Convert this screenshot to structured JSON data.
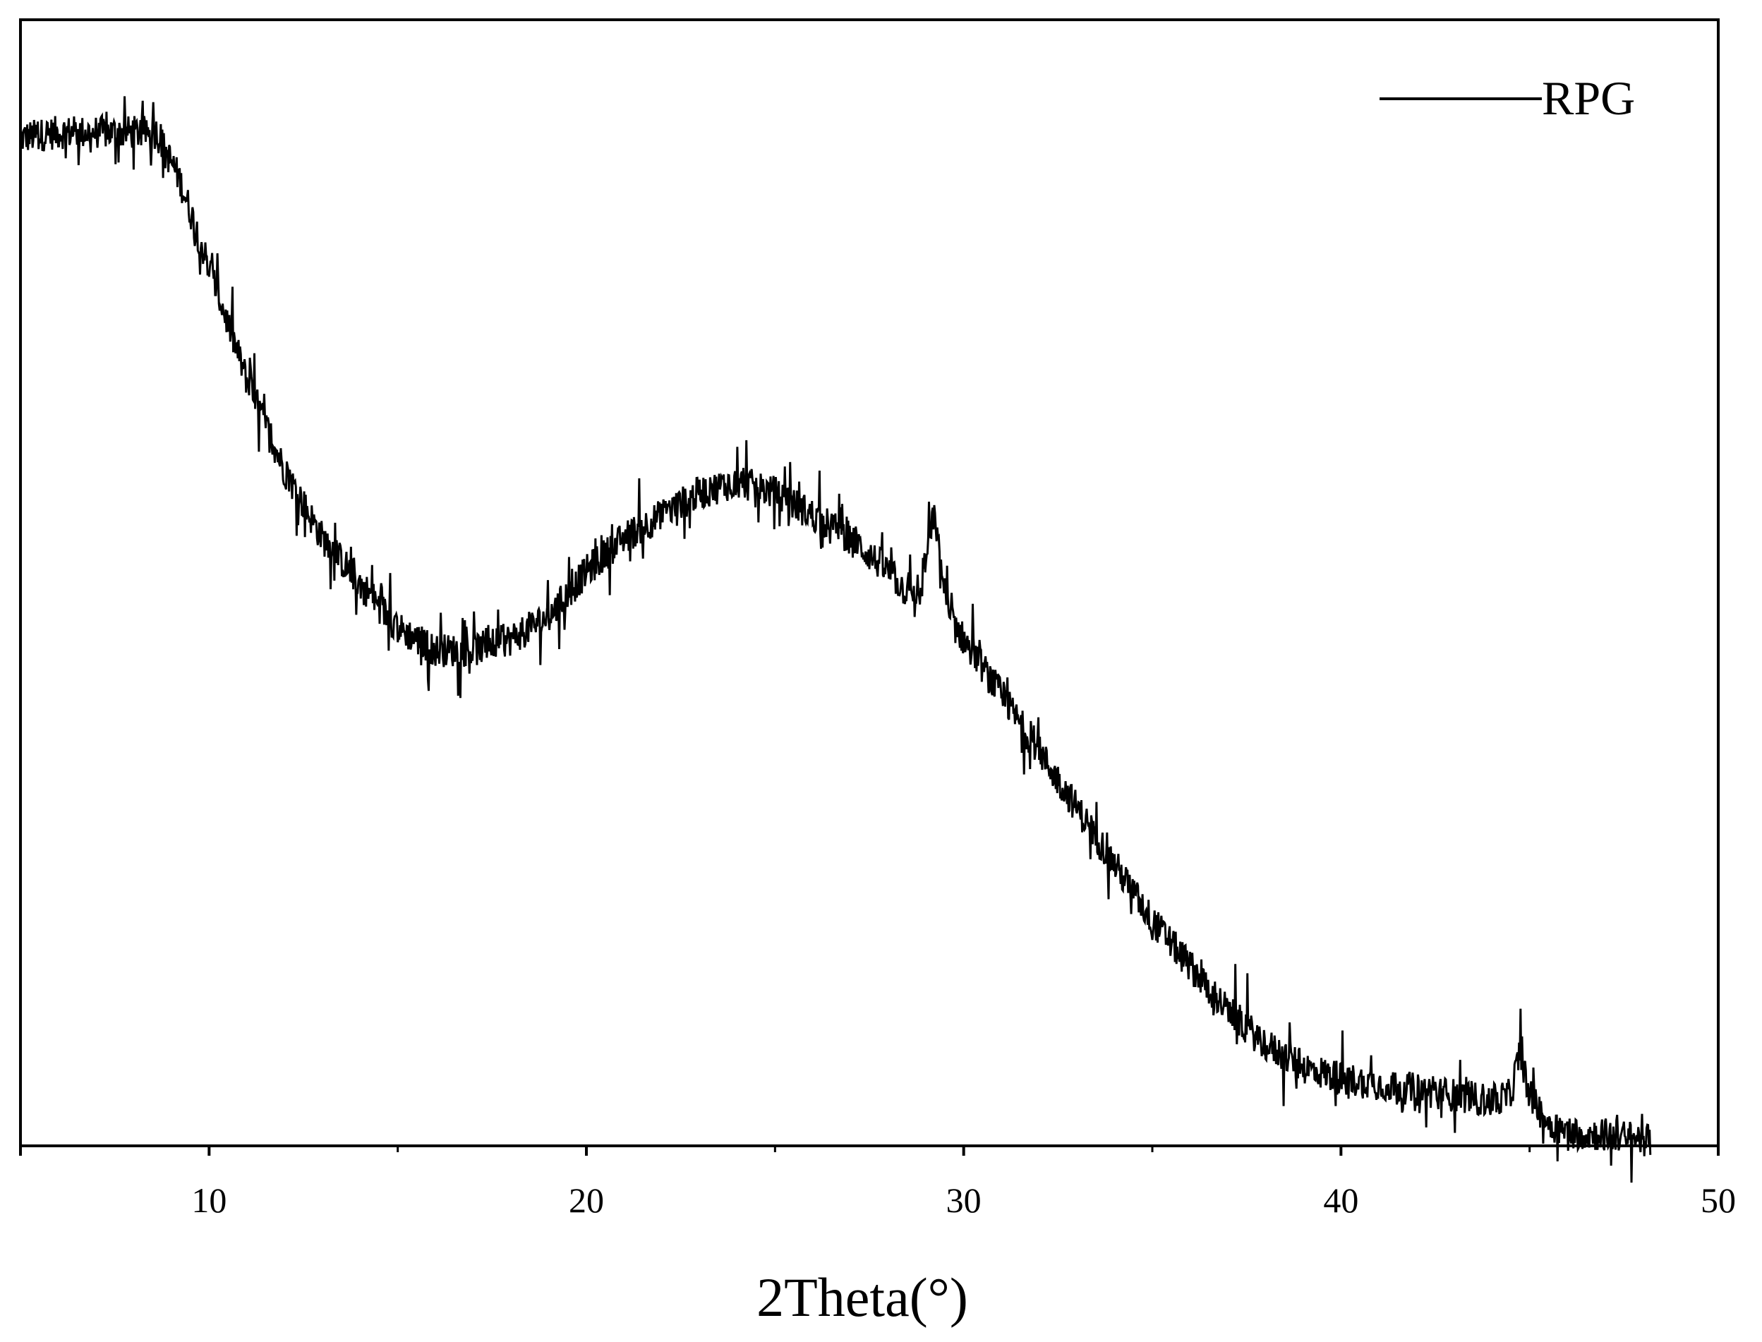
{
  "chart_data": {
    "type": "line",
    "title": "",
    "xlabel": "2Theta(°)",
    "ylabel": "",
    "xlim": [
      5,
      50
    ],
    "ylim": [
      0,
      1
    ],
    "x_ticks": [
      10,
      20,
      30,
      40,
      50
    ],
    "x_tick_labels": [
      "10",
      "20",
      "30",
      "40",
      "50"
    ],
    "y_ticks_shown": false,
    "grid": false,
    "legend": {
      "position": "top-right"
    },
    "colors": {
      "line": "#000000",
      "axis": "#000000",
      "background": "#ffffff"
    },
    "series": [
      {
        "name": "RPG",
        "noise_amplitude": 0.025,
        "x": [
          5,
          6,
          7,
          8,
          8.6,
          9.2,
          10,
          11,
          12,
          13,
          14,
          15,
          16,
          17,
          18,
          19,
          20,
          21,
          22,
          23,
          24,
          25,
          26,
          27,
          28,
          28.8,
          29.2,
          29.6,
          30,
          31,
          32,
          33,
          34,
          35,
          36,
          37,
          38,
          39,
          40,
          41,
          42,
          43,
          44,
          44.5,
          44.75,
          45.0,
          45.5,
          46,
          47,
          48.2
        ],
        "y": [
          0.895,
          0.9,
          0.9,
          0.9,
          0.9,
          0.86,
          0.78,
          0.68,
          0.6,
          0.54,
          0.5,
          0.46,
          0.44,
          0.44,
          0.45,
          0.47,
          0.51,
          0.54,
          0.56,
          0.58,
          0.59,
          0.58,
          0.56,
          0.54,
          0.51,
          0.48,
          0.56,
          0.47,
          0.45,
          0.4,
          0.35,
          0.3,
          0.25,
          0.2,
          0.16,
          0.12,
          0.09,
          0.07,
          0.06,
          0.055,
          0.05,
          0.045,
          0.04,
          0.045,
          0.085,
          0.045,
          0.02,
          0.012,
          0.01,
          0.005
        ]
      }
    ]
  }
}
